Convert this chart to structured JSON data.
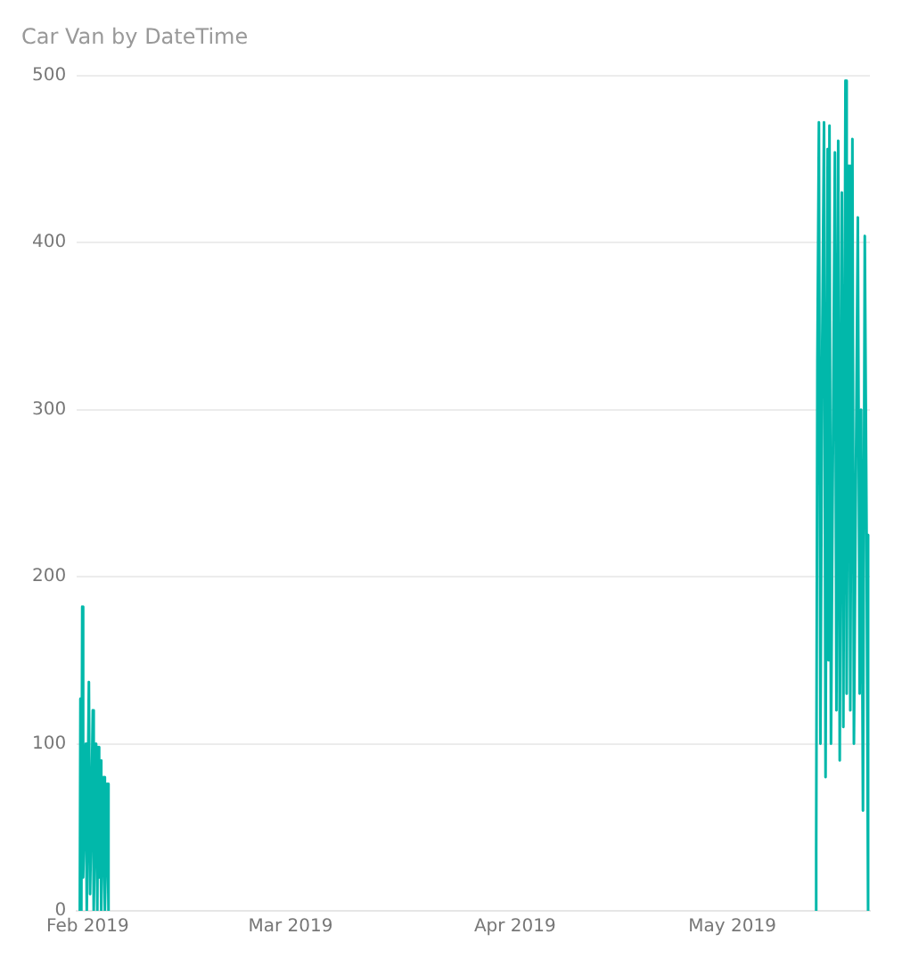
{
  "chart_data": {
    "type": "line",
    "title": "Car Van by DateTime",
    "xlim": [
      "2019-01-30T12:00",
      "2019-05-20T00:00"
    ],
    "xticks": [
      {
        "value": "2019-02-01",
        "label": "Feb 2019"
      },
      {
        "value": "2019-03-01",
        "label": "Mar 2019"
      },
      {
        "value": "2019-04-01",
        "label": "Apr 2019"
      },
      {
        "value": "2019-05-01",
        "label": "May 2019"
      }
    ],
    "ylim": [
      0,
      500
    ],
    "yticks": [
      0,
      100,
      200,
      300,
      400,
      500
    ],
    "grid": "y",
    "marker": "none",
    "line_style": "solid",
    "series": [
      {
        "color": "#01b8aa",
        "x": [
          "2019-01-30T22:00",
          "2019-01-31T00:00",
          "2019-01-31T03:00",
          "2019-01-31T06:00",
          "2019-01-31T09:00",
          "2019-01-31T14:00",
          "2019-01-31T18:00",
          "2019-01-31T21:00",
          "2019-02-01T04:00",
          "2019-02-01T08:00",
          "2019-02-01T14:00",
          "2019-02-01T17:00",
          "2019-02-01T20:00",
          "2019-02-02T04:00",
          "2019-02-02T08:00",
          "2019-02-02T11:00",
          "2019-02-02T14:00",
          "2019-02-02T17:00",
          "2019-02-02T21:00",
          "2019-02-03T05:00",
          "2019-02-03T09:00",
          "2019-02-03T12:00",
          "2019-02-03T17:00",
          "2019-02-03T21:00",
          "2019-03-15T00:00",
          "2019-05-12T12:00",
          "2019-05-12T14:00",
          "2019-05-12T18:00",
          "2019-05-12T23:00",
          "2019-05-13T04:00",
          "2019-05-13T10:00",
          "2019-05-13T16:00",
          "2019-05-13T21:00",
          "2019-05-14T04:00",
          "2019-05-14T07:00",
          "2019-05-14T10:00",
          "2019-05-14T15:00",
          "2019-05-15T04:00",
          "2019-05-15T09:00",
          "2019-05-15T15:00",
          "2019-05-15T20:00",
          "2019-05-16T03:00",
          "2019-05-16T08:00",
          "2019-05-16T15:00",
          "2019-05-16T19:00",
          "2019-05-17T02:00",
          "2019-05-17T07:00",
          "2019-05-17T14:00",
          "2019-05-17T19:00",
          "2019-05-18T08:00",
          "2019-05-18T14:00",
          "2019-05-18T19:00",
          "2019-05-19T01:00",
          "2019-05-19T07:00",
          "2019-05-19T13:00",
          "2019-05-19T18:00"
        ],
        "values": [
          0,
          127,
          0,
          182,
          20,
          60,
          100,
          0,
          137,
          10,
          80,
          120,
          0,
          100,
          0,
          98,
          20,
          90,
          0,
          80,
          0,
          30,
          76,
          0,
          null,
          0,
          35,
          330,
          472,
          100,
          340,
          472,
          80,
          456,
          150,
          470,
          100,
          454,
          120,
          461,
          90,
          430,
          110,
          497,
          130,
          446,
          120,
          462,
          100,
          415,
          130,
          300,
          60,
          404,
          225,
          0
        ]
      }
    ]
  }
}
